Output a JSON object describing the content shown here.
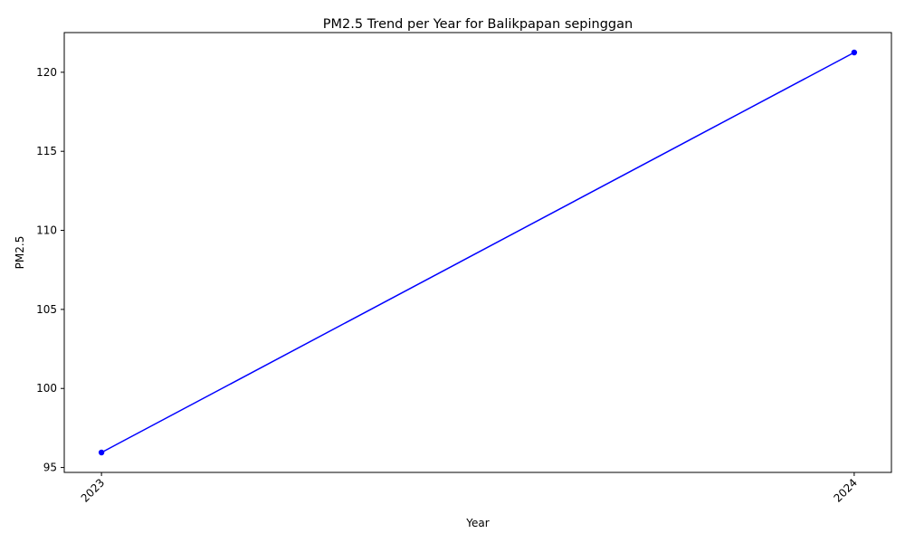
{
  "chart_data": {
    "type": "line",
    "title": "PM2.5 Trend per Year for Balikpapan sepinggan",
    "xlabel": "Year",
    "ylabel": "PM2.5",
    "x": [
      "2023",
      "2024"
    ],
    "series": [
      {
        "values": [
          95.95,
          121.25
        ],
        "color": "#0000ff",
        "marker": "circle"
      }
    ],
    "ylim": [
      94.69,
      122.51
    ],
    "yticks": [
      95,
      100,
      105,
      110,
      115,
      120
    ],
    "x_tick_rotation_degrees": 45,
    "grid": false,
    "legend": "none"
  }
}
